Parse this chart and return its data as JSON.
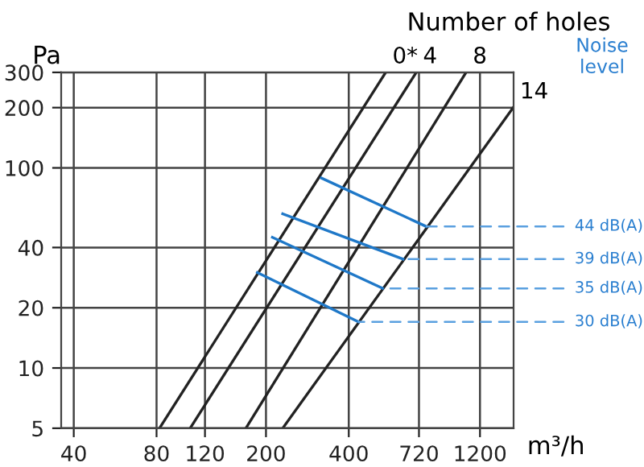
{
  "chart_data": {
    "type": "line",
    "log": "xy",
    "xlabel": "m³/h",
    "ylabel": "Pa",
    "xlim": [
      36,
      1590
    ],
    "ylim": [
      5,
      300
    ],
    "xticks": [
      40,
      80,
      120,
      200,
      400,
      720,
      1200
    ],
    "yticks": [
      5,
      10,
      20,
      40,
      100,
      200,
      300
    ],
    "grid": true,
    "marker": "none",
    "series": [
      {
        "name": "0*",
        "color": "#222222",
        "x": [
          82,
          545
        ],
        "values": [
          5,
          300
        ]
      },
      {
        "name": "4",
        "color": "#222222",
        "x": [
          106,
          704
        ],
        "values": [
          5,
          300
        ]
      },
      {
        "name": "8",
        "color": "#222222",
        "x": [
          169,
          1068
        ],
        "values": [
          5,
          300
        ]
      },
      {
        "name": "14",
        "color": "#222222",
        "x": [
          230,
          1585
        ],
        "values": [
          5,
          200
        ]
      },
      {
        "color": "#1f78c8",
        "x": [
          318,
          764
        ],
        "values": [
          89,
          51
        ]
      },
      {
        "color": "#1f78c8",
        "x": [
          230,
          630
        ],
        "values": [
          59,
          35
        ]
      },
      {
        "color": "#1f78c8",
        "x": [
          211,
          531
        ],
        "values": [
          45,
          25
        ]
      },
      {
        "color": "#1f78c8",
        "x": [
          186,
          434
        ],
        "values": [
          30,
          17
        ]
      }
    ],
    "annotations": [
      "Number of holes",
      "Noise level",
      {
        "text": "44 dB(A)",
        "x": 764,
        "y": 51
      },
      {
        "text": "39 dB(A)",
        "x": 630,
        "y": 35
      },
      {
        "text": "35 dB(A)",
        "x": 531,
        "y": 25
      },
      {
        "text": "30 dB(A)",
        "x": 434,
        "y": 17
      }
    ]
  }
}
